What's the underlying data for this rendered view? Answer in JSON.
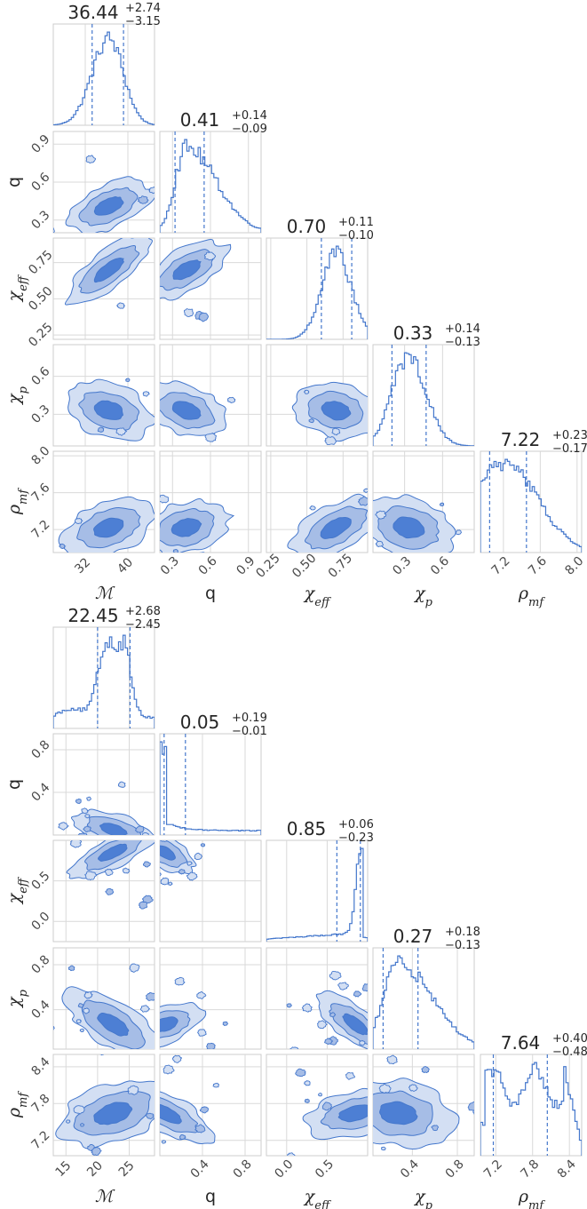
{
  "chart_data": [
    {
      "type": "corner",
      "parameters": [
        {
          "name": "ℳ",
          "label_symbol": "ℳ",
          "label_sub": "",
          "median": 36.44,
          "plus": 2.74,
          "minus": 3.15,
          "range": [
            26,
            45
          ],
          "ticks": [
            32,
            40
          ],
          "tick_labels": [
            "32",
            "40"
          ]
        },
        {
          "name": "q",
          "label_symbol": "q",
          "label_sub": "",
          "median": 0.41,
          "plus": 0.14,
          "minus": 0.09,
          "range": [
            0.2,
            1.0
          ],
          "ticks": [
            0.3,
            0.6,
            0.9
          ],
          "tick_labels": [
            "0.3",
            "0.6",
            "0.9"
          ]
        },
        {
          "name": "χ_eff",
          "label_symbol": "χ",
          "label_sub": "eff",
          "median": 0.7,
          "plus": 0.11,
          "minus": 0.1,
          "range": [
            0.22,
            0.92
          ],
          "ticks": [
            0.25,
            0.5,
            0.75
          ],
          "tick_labels": [
            "0.25",
            "0.50",
            "0.75"
          ]
        },
        {
          "name": "χ_p",
          "label_symbol": "χ",
          "label_sub": "p",
          "median": 0.33,
          "plus": 0.14,
          "minus": 0.13,
          "range": [
            0.05,
            0.85
          ],
          "ticks": [
            0.3,
            0.6
          ],
          "tick_labels": [
            "0.3",
            "0.6"
          ]
        },
        {
          "name": "ρ_mf",
          "label_symbol": "ρ",
          "label_sub": "mf",
          "median": 7.22,
          "plus": 0.23,
          "minus": 0.17,
          "range": [
            6.95,
            8.05
          ],
          "ticks": [
            7.2,
            7.6,
            8.0
          ],
          "tick_labels": [
            "7.2",
            "7.6",
            "8.0"
          ]
        }
      ],
      "titles": [
        {
          "main": "36.44",
          "plus": "+2.74",
          "minus": "−3.15"
        },
        {
          "main": "0.41",
          "plus": "+0.14",
          "minus": "−0.09"
        },
        {
          "main": "0.70",
          "plus": "+0.11",
          "minus": "−0.10"
        },
        {
          "main": "0.33",
          "plus": "+0.14",
          "minus": "−0.13"
        },
        {
          "main": "7.22",
          "plus": "+0.23",
          "minus": "−0.17"
        }
      ],
      "hist_shape": [
        "gauss",
        "skewright",
        "gauss",
        "gauss",
        "decay"
      ],
      "correlations": [
        [
          0,
          0,
          0,
          0,
          0
        ],
        [
          0.5,
          0,
          0,
          0,
          0
        ],
        [
          0.8,
          0.55,
          0,
          0,
          0
        ],
        [
          -0.3,
          -0.3,
          -0.2,
          0,
          0
        ],
        [
          0.3,
          0.2,
          0.45,
          -0.25,
          0
        ]
      ],
      "grid": true,
      "colors": {
        "line": "#4477cc",
        "fill1": "#d3dff3",
        "fill2": "#a6bde6",
        "fill3": "#4d7fd4"
      }
    },
    {
      "type": "corner",
      "parameters": [
        {
          "name": "ℳ",
          "label_symbol": "ℳ",
          "label_sub": "",
          "median": 22.45,
          "plus": 2.68,
          "minus": 2.45,
          "range": [
            13,
            29
          ],
          "ticks": [
            15,
            20,
            25
          ],
          "tick_labels": [
            "15",
            "20",
            "25"
          ]
        },
        {
          "name": "q",
          "label_symbol": "q",
          "label_sub": "",
          "median": 0.05,
          "plus": 0.19,
          "minus": 0.01,
          "range": [
            0.0,
            0.95
          ],
          "ticks": [
            0.4,
            0.8
          ],
          "tick_labels": [
            "0.4",
            "0.8"
          ]
        },
        {
          "name": "χ_eff",
          "label_symbol": "χ",
          "label_sub": "eff",
          "median": 0.85,
          "plus": 0.06,
          "minus": 0.23,
          "range": [
            -0.25,
            1.0
          ],
          "ticks": [
            0.0,
            0.5
          ],
          "tick_labels": [
            "0.0",
            "0.5"
          ]
        },
        {
          "name": "χ_p",
          "label_symbol": "χ",
          "label_sub": "p",
          "median": 0.27,
          "plus": 0.18,
          "minus": 0.13,
          "range": [
            0.05,
            0.95
          ],
          "ticks": [
            0.4,
            0.8
          ],
          "tick_labels": [
            "0.4",
            "0.8"
          ]
        },
        {
          "name": "ρ_mf",
          "label_symbol": "ρ",
          "label_sub": "mf",
          "median": 7.64,
          "plus": 0.4,
          "minus": 0.48,
          "range": [
            6.95,
            8.6
          ],
          "ticks": [
            7.2,
            7.8,
            8.4
          ],
          "tick_labels": [
            "7.2",
            "7.8",
            "8.4"
          ]
        }
      ],
      "titles": [
        {
          "main": "22.45",
          "plus": "+2.68",
          "minus": "−2.45"
        },
        {
          "main": "0.05",
          "plus": "+0.19",
          "minus": "−0.01"
        },
        {
          "main": "0.85",
          "plus": "+0.06",
          "minus": "−0.23"
        },
        {
          "main": "0.27",
          "plus": "+0.18",
          "minus": "−0.13"
        },
        {
          "main": "7.64",
          "plus": "+0.40",
          "minus": "−0.48"
        }
      ],
      "hist_shape": [
        "bimodal",
        "spike",
        "peakright",
        "skewright",
        "flat"
      ],
      "correlations": [
        [
          0,
          0,
          0,
          0,
          0
        ],
        [
          -0.45,
          0,
          0,
          0,
          0
        ],
        [
          0.7,
          -0.5,
          0,
          0,
          0
        ],
        [
          -0.6,
          0.2,
          -0.5,
          0,
          0
        ],
        [
          0.2,
          -0.2,
          0.1,
          -0.1,
          0
        ]
      ],
      "grid": true,
      "colors": {
        "line": "#4477cc",
        "fill1": "#d3dff3",
        "fill2": "#a6bde6",
        "fill3": "#4d7fd4"
      }
    }
  ]
}
